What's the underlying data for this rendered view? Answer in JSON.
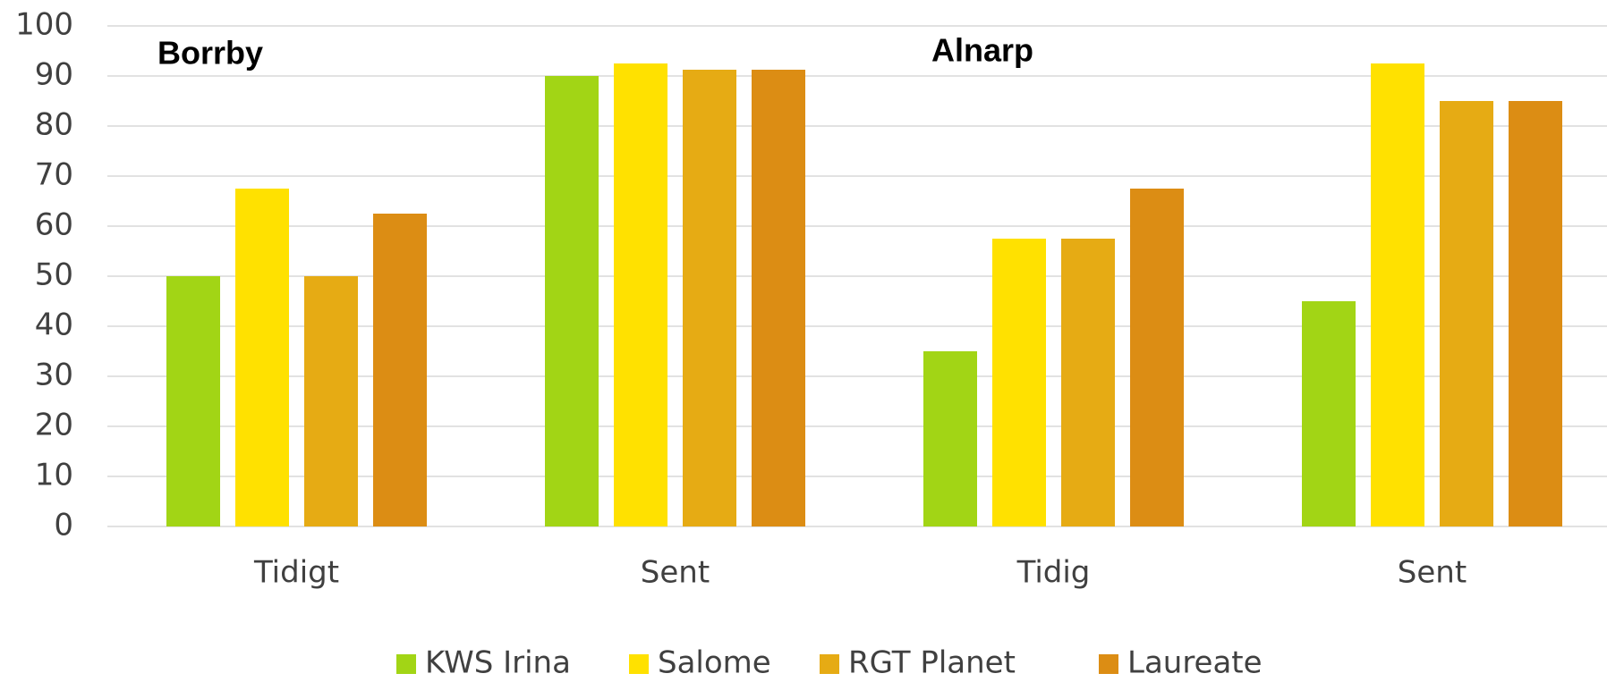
{
  "chart_data": {
    "type": "bar",
    "categories": [
      "Tidigt",
      "Sent",
      "Tidig",
      "Sent"
    ],
    "annotations": [
      "Borrby",
      "Alnarp"
    ],
    "series": [
      {
        "name": "KWS Irina",
        "color": "#a2d515",
        "values": [
          50,
          90,
          35,
          45
        ]
      },
      {
        "name": "Salome",
        "color": "#ffe100",
        "values": [
          67.5,
          92.5,
          57.5,
          92.5
        ]
      },
      {
        "name": "RGT Planet",
        "color": "#e6ab14",
        "values": [
          50,
          91.25,
          57.5,
          85
        ]
      },
      {
        "name": "Laureate",
        "color": "#dc8d14",
        "values": [
          62.5,
          91.25,
          67.5,
          85
        ]
      }
    ],
    "ylim": [
      0,
      100
    ],
    "yticks": [
      0,
      10,
      20,
      30,
      40,
      50,
      60,
      70,
      80,
      90,
      100
    ],
    "grid": true,
    "legend": "bottom"
  }
}
